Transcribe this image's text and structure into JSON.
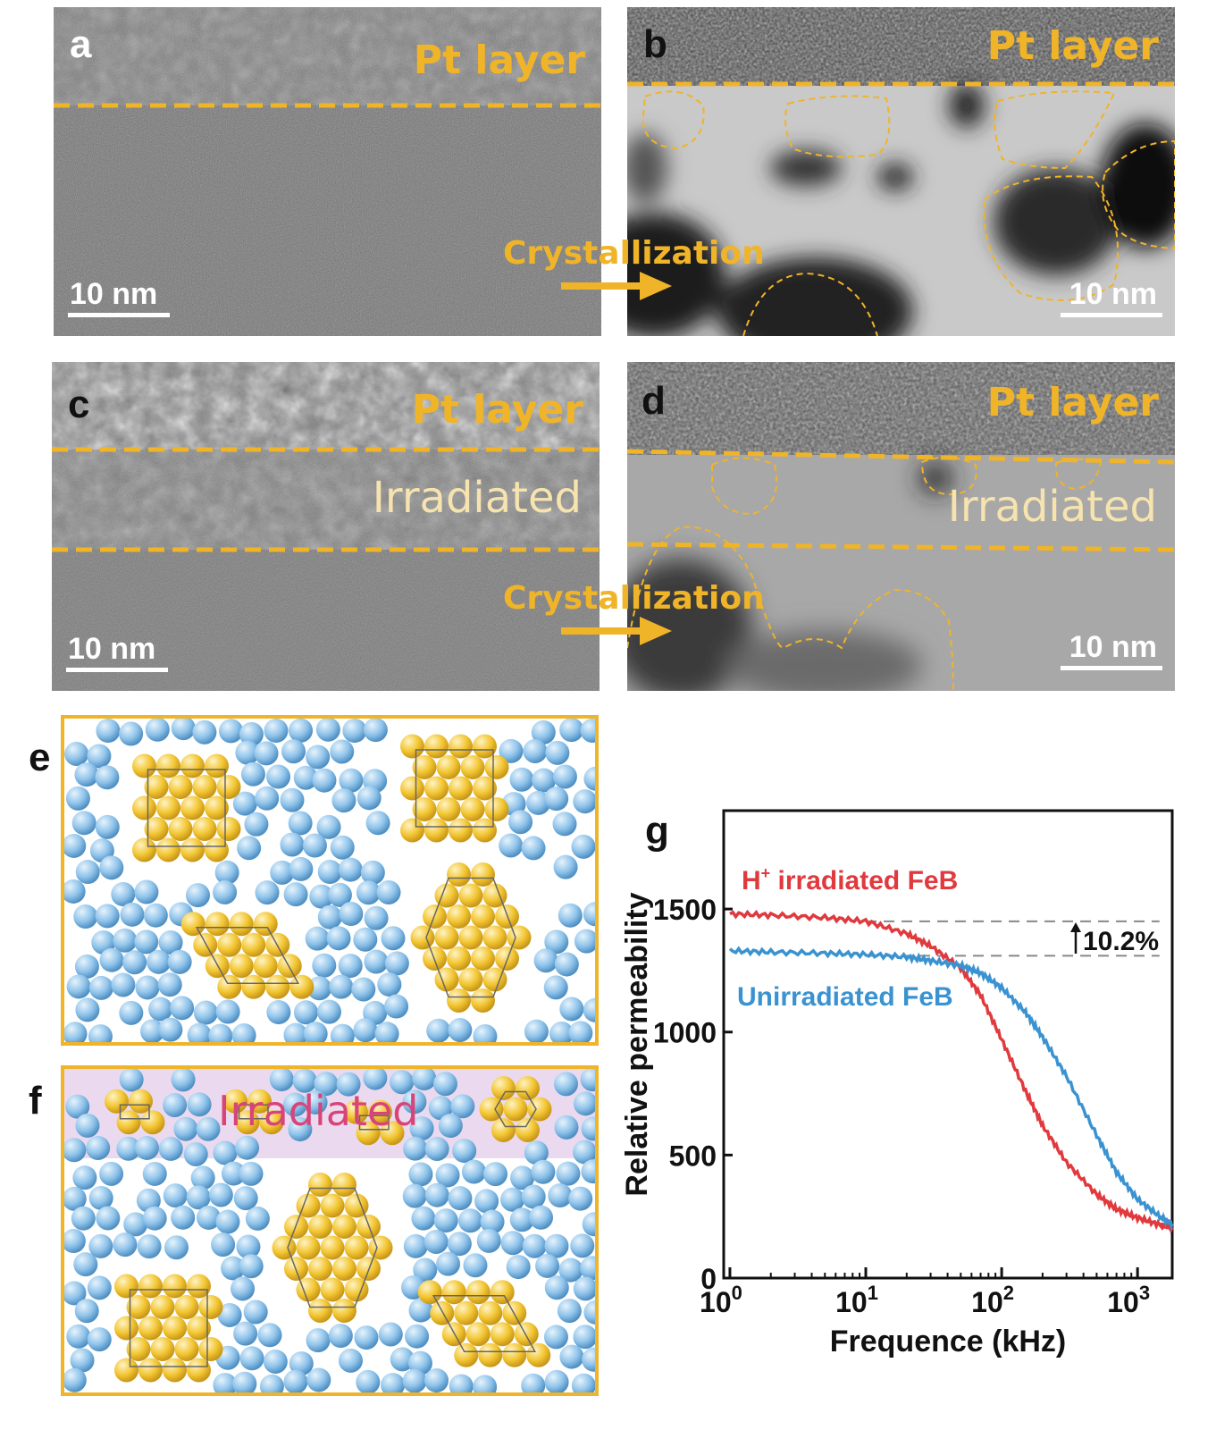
{
  "colors": {
    "gold": "#F0B429",
    "red": "#E0393E",
    "blue": "#3A93D0",
    "atom_blue": "#8FC3EA",
    "atom_gold": "#F2C530",
    "irradiated_pink": "#D8447A"
  },
  "panels": {
    "a": {
      "label": "a",
      "pt_layer": "Pt layer",
      "scale": "10 nm"
    },
    "b": {
      "label": "b",
      "pt_layer": "Pt layer",
      "scale": "10 nm"
    },
    "c": {
      "label": "c",
      "pt_layer": "Pt layer",
      "irradiated": "Irradiated",
      "scale": "10 nm"
    },
    "d": {
      "label": "d",
      "pt_layer": "Pt layer",
      "irradiated": "Irradiated",
      "scale": "10 nm"
    },
    "e": {
      "label": "e"
    },
    "f": {
      "label": "f",
      "irradiated": "Irradiated"
    },
    "g": {
      "label": "g"
    }
  },
  "arrows": {
    "top": "Crystallization",
    "bottom": "Crystallization"
  },
  "chart_data": {
    "type": "line",
    "xlabel": "Frequence (kHz)",
    "ylabel": "Relative permeability",
    "x_scale": "log",
    "xlim": [
      0.9,
      1800
    ],
    "ylim": [
      0,
      1900
    ],
    "x_ticks": [
      {
        "value": 1,
        "base": "10",
        "exp": "0"
      },
      {
        "value": 10,
        "base": "10",
        "exp": "1"
      },
      {
        "value": 100,
        "base": "10",
        "exp": "2"
      },
      {
        "value": 1000,
        "base": "10",
        "exp": "3"
      }
    ],
    "y_ticks": [
      0,
      500,
      1000,
      1500
    ],
    "annotation": "10.2%",
    "reference_levels": [
      1450,
      1310
    ],
    "series": [
      {
        "name_main": "H",
        "name_sup": "+",
        "name_rest": " irradiated FeB",
        "color": "#E0393E",
        "x": [
          1,
          2,
          5,
          10,
          20,
          30,
          50,
          70,
          100,
          150,
          200,
          300,
          500,
          700,
          1000,
          1500,
          1800
        ],
        "y": [
          1480,
          1475,
          1465,
          1450,
          1400,
          1350,
          1260,
          1150,
          970,
          760,
          620,
          470,
          340,
          280,
          245,
          215,
          205
        ]
      },
      {
        "name": "Unirradiated FeB",
        "color": "#3A93D0",
        "x": [
          1,
          2,
          5,
          10,
          20,
          30,
          50,
          70,
          100,
          150,
          200,
          300,
          500,
          700,
          1000,
          1500,
          1800
        ],
        "y": [
          1330,
          1325,
          1320,
          1315,
          1305,
          1290,
          1270,
          1240,
          1180,
          1080,
          980,
          820,
          580,
          430,
          320,
          245,
          220
        ]
      }
    ]
  }
}
